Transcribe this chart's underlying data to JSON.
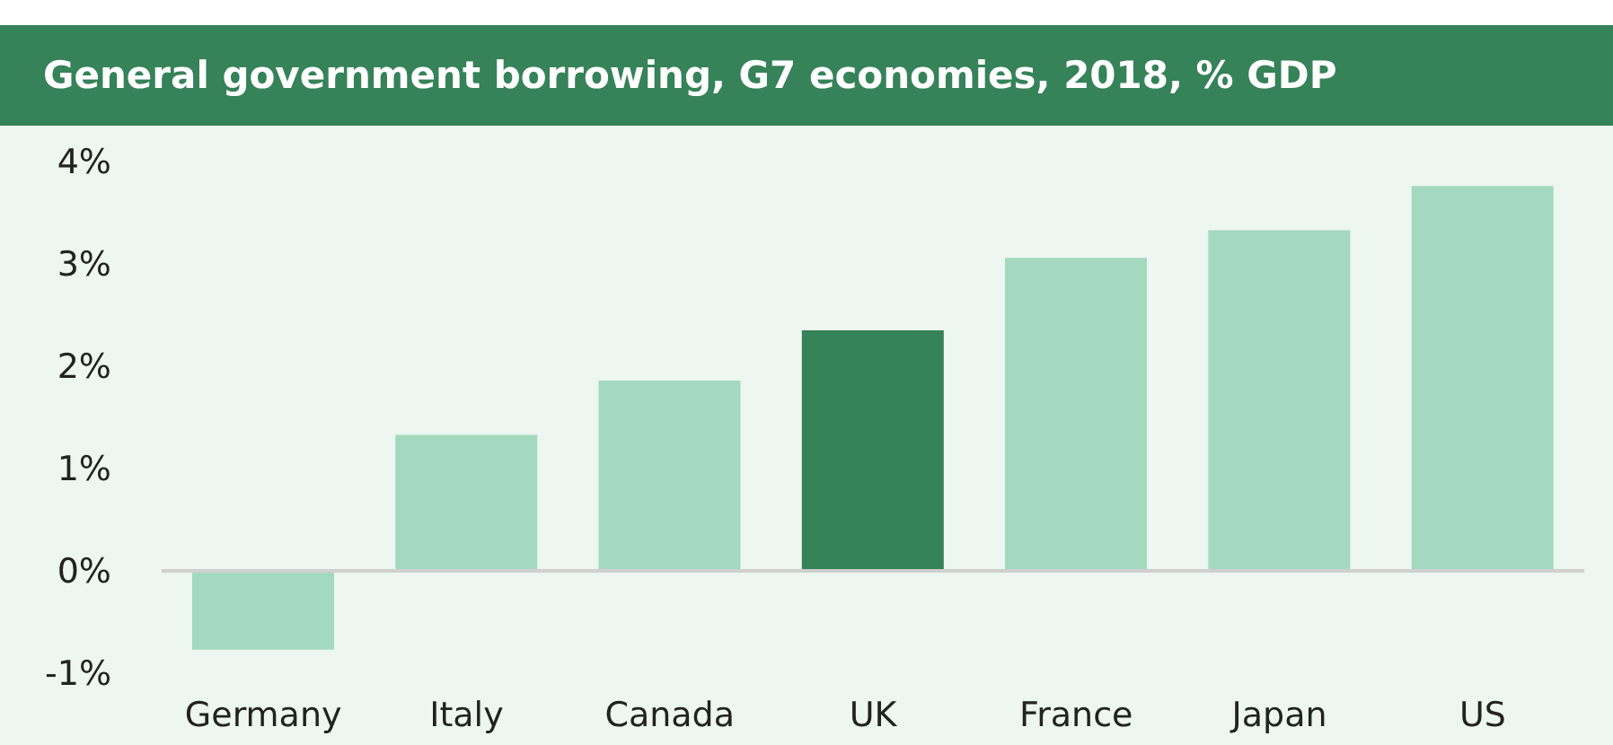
{
  "chart_data": {
    "type": "bar",
    "title": "General government borrowing, G7 economies, 2018, % GDP",
    "categories": [
      "Germany",
      "Italy",
      "Canada",
      "UK",
      "France",
      "Japan",
      "US"
    ],
    "values": [
      -0.77,
      1.33,
      1.86,
      2.35,
      3.06,
      3.33,
      3.76
    ],
    "colors": [
      "#a3d9bf",
      "#a3d9bf",
      "#a3d9bf",
      "#368259",
      "#a3d9bf",
      "#a3d9bf",
      "#a3d9bf"
    ],
    "ylim": [
      -1,
      4
    ],
    "yticks": [
      {
        "value": -1,
        "label": "-1%"
      },
      {
        "value": 0,
        "label": "0%"
      },
      {
        "value": 1,
        "label": "1%"
      },
      {
        "value": 2,
        "label": "2%"
      },
      {
        "value": 3,
        "label": "3%"
      },
      {
        "value": 4,
        "label": "4%"
      }
    ],
    "ref_lines": [
      {
        "axis": "y",
        "value": 0,
        "color": "#d0d0d0"
      }
    ],
    "grid": false,
    "legend": false
  }
}
